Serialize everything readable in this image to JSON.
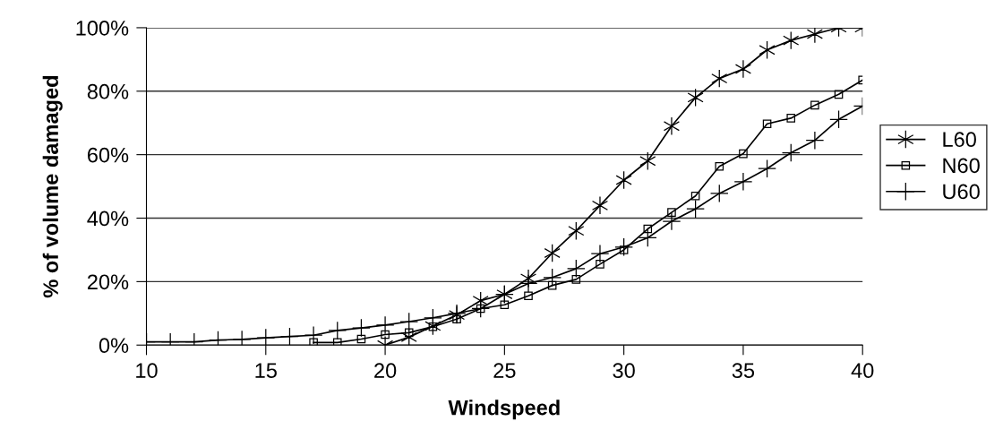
{
  "chart_data": {
    "type": "line",
    "xlabel": "Windspeed",
    "ylabel": "% of volume damaged",
    "xlim": [
      10,
      40
    ],
    "xticks": [
      10,
      15,
      20,
      25,
      30,
      35,
      40
    ],
    "ylim": [
      0,
      100
    ],
    "yticks": [
      {
        "value": 0,
        "label": "0%"
      },
      {
        "value": 20,
        "label": "20%"
      },
      {
        "value": 40,
        "label": "40%"
      },
      {
        "value": 60,
        "label": "60%"
      },
      {
        "value": 80,
        "label": "80%"
      },
      {
        "value": 100,
        "label": "100%"
      }
    ],
    "grid": "y",
    "legend": "right",
    "series": [
      {
        "name": "L60",
        "color": "#000000",
        "marker": "cross",
        "x": [
          20,
          21,
          22,
          23,
          24,
          25,
          26,
          27,
          28,
          29,
          30,
          31,
          32,
          33,
          34,
          35,
          36,
          37,
          38,
          39,
          40
        ],
        "values": [
          0,
          2.5,
          6,
          9.5,
          14,
          16,
          21,
          29,
          36,
          44,
          52,
          58,
          69,
          78,
          84,
          87,
          93,
          96,
          98,
          100,
          100
        ]
      },
      {
        "name": "N60",
        "color": "#000000",
        "marker": "square",
        "x": [
          17,
          18,
          19,
          20,
          21,
          22,
          23,
          24,
          25,
          26,
          27,
          28,
          29,
          30,
          31,
          32,
          33,
          34,
          35,
          36,
          37,
          38,
          39,
          40
        ],
        "values": [
          0.8,
          0.8,
          1.9,
          3.3,
          3.9,
          5.8,
          8.2,
          11.5,
          12.7,
          15.5,
          18.8,
          20.7,
          25.5,
          30,
          36.6,
          41.8,
          47,
          56.3,
          60.3,
          69.7,
          71.5,
          75.6,
          79,
          83.5
        ]
      },
      {
        "name": "U60",
        "color": "#000000",
        "marker": "cross",
        "x": [
          10,
          11,
          12,
          13,
          14,
          15,
          16,
          17,
          18,
          19,
          20,
          21,
          22,
          23,
          24,
          25,
          26,
          27,
          28,
          29,
          30,
          31,
          32,
          33,
          34,
          35,
          36,
          37,
          38,
          39,
          40
        ],
        "values": [
          1,
          1,
          1,
          1.6,
          1.8,
          2.3,
          2.7,
          3.1,
          4.6,
          5.4,
          6.3,
          7.4,
          8.6,
          10,
          11.5,
          16,
          19.4,
          21.3,
          24.1,
          28.8,
          30.9,
          33.8,
          39,
          42.9,
          47.8,
          51.5,
          55.6,
          60.6,
          64.5,
          71.1,
          75.3
        ]
      }
    ]
  }
}
